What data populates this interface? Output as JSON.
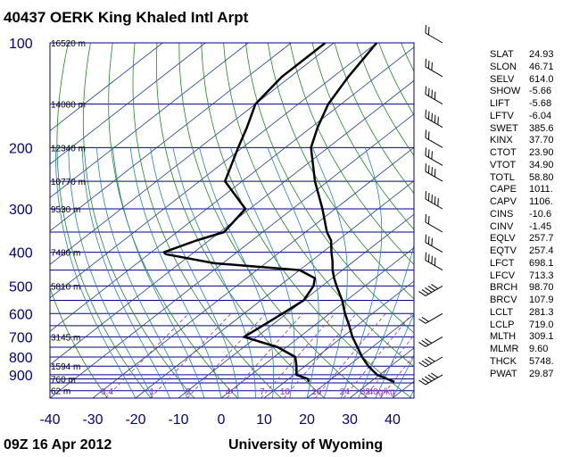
{
  "station": {
    "title": "40437 OERK King Khaled Intl Arpt",
    "time": "09Z 16 Apr 2012",
    "source": "University of Wyoming"
  },
  "colors": {
    "isobar": "#00008b",
    "skewed_isotherm": "#1e3ca0",
    "dry_adiabat": "#1a8a1a",
    "moist_adiabat": "#1f7fc2",
    "mixing_ratio": "#9b30b0",
    "profile": "#000000",
    "axis_label": "#00008b"
  },
  "indices": [
    {
      "name": "SLAT",
      "value": "24.93"
    },
    {
      "name": "SLON",
      "value": "46.71"
    },
    {
      "name": "SELV",
      "value": "614.0"
    },
    {
      "name": "SHOW",
      "value": "-5.66"
    },
    {
      "name": "LIFT",
      "value": "-5.68"
    },
    {
      "name": "LFTV",
      "value": "-6.04"
    },
    {
      "name": "SWET",
      "value": "385.6"
    },
    {
      "name": "KINX",
      "value": "37.70"
    },
    {
      "name": "CTOT",
      "value": "23.90"
    },
    {
      "name": "VTOT",
      "value": "34.90"
    },
    {
      "name": "TOTL",
      "value": "58.80"
    },
    {
      "name": "CAPE",
      "value": "1011."
    },
    {
      "name": "CAPV",
      "value": "1106."
    },
    {
      "name": "CINS",
      "value": "-10.6"
    },
    {
      "name": "CINV",
      "value": "-1.45"
    },
    {
      "name": "EQLV",
      "value": "257.7"
    },
    {
      "name": "EQTV",
      "value": "257.4"
    },
    {
      "name": "LFCT",
      "value": "698.1"
    },
    {
      "name": "LFCV",
      "value": "713.3"
    },
    {
      "name": "BRCH",
      "value": "98.70"
    },
    {
      "name": "BRCV",
      "value": "107.9"
    },
    {
      "name": "LCLT",
      "value": "281.3"
    },
    {
      "name": "LCLP",
      "value": "719.0"
    },
    {
      "name": "MLTH",
      "value": "309.1"
    },
    {
      "name": "MLMR",
      "value": "9.60"
    },
    {
      "name": "THCK",
      "value": "5748."
    },
    {
      "name": "PWAT",
      "value": "29.87"
    }
  ],
  "chart_data": {
    "type": "line",
    "title": "40437 OERK King Khaled Intl Arpt",
    "subtitle": "09Z 16 Apr 2012",
    "xlabel": "",
    "ylabel": "",
    "x_ticks": [
      -40,
      -30,
      -20,
      -10,
      0,
      10,
      20,
      30,
      40
    ],
    "pressure_ticks": [
      100,
      200,
      300,
      400,
      500,
      600,
      700,
      800,
      900
    ],
    "isobars": [
      100,
      150,
      200,
      250,
      300,
      350,
      400,
      450,
      500,
      550,
      600,
      650,
      700,
      750,
      800,
      850,
      900,
      925,
      950,
      1000
    ],
    "height_labels": [
      {
        "p": 100,
        "text": "16520 m"
      },
      {
        "p": 150,
        "text": "14080 m"
      },
      {
        "p": 200,
        "text": "12340 m"
      },
      {
        "p": 250,
        "text": "10770 m"
      },
      {
        "p": 300,
        "text": "9530 m"
      },
      {
        "p": 400,
        "text": "7480 m"
      },
      {
        "p": 500,
        "text": "5810 m"
      },
      {
        "p": 700,
        "text": "3145 m"
      },
      {
        "p": 850,
        "text": "1594 m"
      },
      {
        "p": 925,
        "text": "760 m"
      },
      {
        "p": 1000,
        "text": "62 m"
      }
    ],
    "mixing_ratio_labels": [
      "0.4",
      "1",
      "2",
      "4",
      "7",
      "10",
      "16",
      "24",
      "32",
      "40g/kg"
    ],
    "mixing_ratio_values": [
      0.4,
      1,
      2,
      4,
      7,
      10,
      16,
      24,
      32,
      40
    ],
    "series": [
      {
        "values": [
          [
            943,
            35.6
          ],
          [
            925,
            33.0
          ],
          [
            900,
            29.4
          ],
          [
            850,
            24.8
          ],
          [
            800,
            20.6
          ],
          [
            750,
            16.6
          ],
          [
            700,
            12.3
          ],
          [
            650,
            8.2
          ],
          [
            600,
            3.6
          ],
          [
            550,
            -1.0
          ],
          [
            500,
            -6.6
          ],
          [
            475,
            -9.5
          ],
          [
            450,
            -12.3
          ],
          [
            425,
            -14.9
          ],
          [
            400,
            -17.9
          ],
          [
            370,
            -21.5
          ],
          [
            350,
            -25.0
          ],
          [
            300,
            -33.0
          ],
          [
            250,
            -43.0
          ],
          [
            200,
            -54.0
          ],
          [
            175,
            -58.5
          ],
          [
            150,
            -63.0
          ],
          [
            125,
            -66.5
          ],
          [
            110,
            -68.5
          ],
          [
            100,
            -70.0
          ]
        ]
      },
      {
        "values": [
          [
            943,
            15.6
          ],
          [
            925,
            14.5
          ],
          [
            900,
            10.6
          ],
          [
            850,
            8.0
          ],
          [
            800,
            5.0
          ],
          [
            750,
            -2.0
          ],
          [
            700,
            -13.0
          ],
          [
            650,
            -12.0
          ],
          [
            600,
            -11.0
          ],
          [
            550,
            -10.0
          ],
          [
            500,
            -12.0
          ],
          [
            475,
            -14.0
          ],
          [
            450,
            -20.0
          ],
          [
            430,
            -42.0
          ],
          [
            405,
            -56.0
          ],
          [
            400,
            -57.0
          ],
          [
            370,
            -53.0
          ],
          [
            350,
            -49.0
          ],
          [
            300,
            -51.0
          ],
          [
            250,
            -64.0
          ],
          [
            200,
            -71.0
          ],
          [
            175,
            -75.0
          ],
          [
            150,
            -80.0
          ],
          [
            125,
            -82.0
          ],
          [
            110,
            -82.0
          ],
          [
            100,
            -82.0
          ]
        ]
      }
    ]
  }
}
